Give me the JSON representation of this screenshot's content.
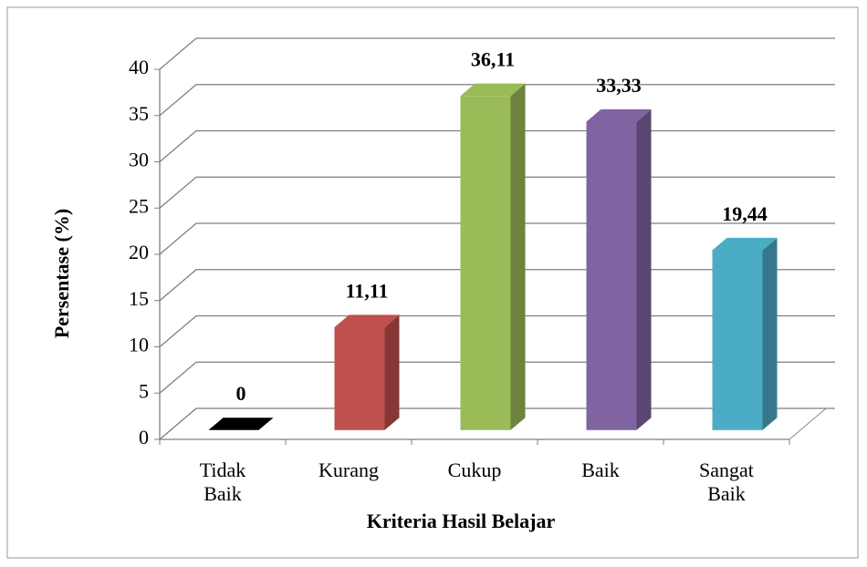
{
  "chart_data": {
    "type": "bar3d",
    "categories": [
      "Tidak Baik",
      "Kurang",
      "Cukup",
      "Baik",
      "Sangat Baik"
    ],
    "values": [
      0,
      11.11,
      36.11,
      33.33,
      19.44
    ],
    "value_labels": [
      "0",
      "11,11",
      "36,11",
      "33,33",
      "19,44"
    ],
    "colors": [
      "#000000",
      "#c0504d",
      "#9bbb59",
      "#8064a2",
      "#4bacc6"
    ],
    "xlabel": "Kriteria Hasil Belajar",
    "ylabel": "Persentase (%)",
    "ylim": [
      0,
      40
    ],
    "yticks": [
      0,
      5,
      10,
      15,
      20,
      25,
      30,
      35,
      40
    ],
    "grid": true
  }
}
